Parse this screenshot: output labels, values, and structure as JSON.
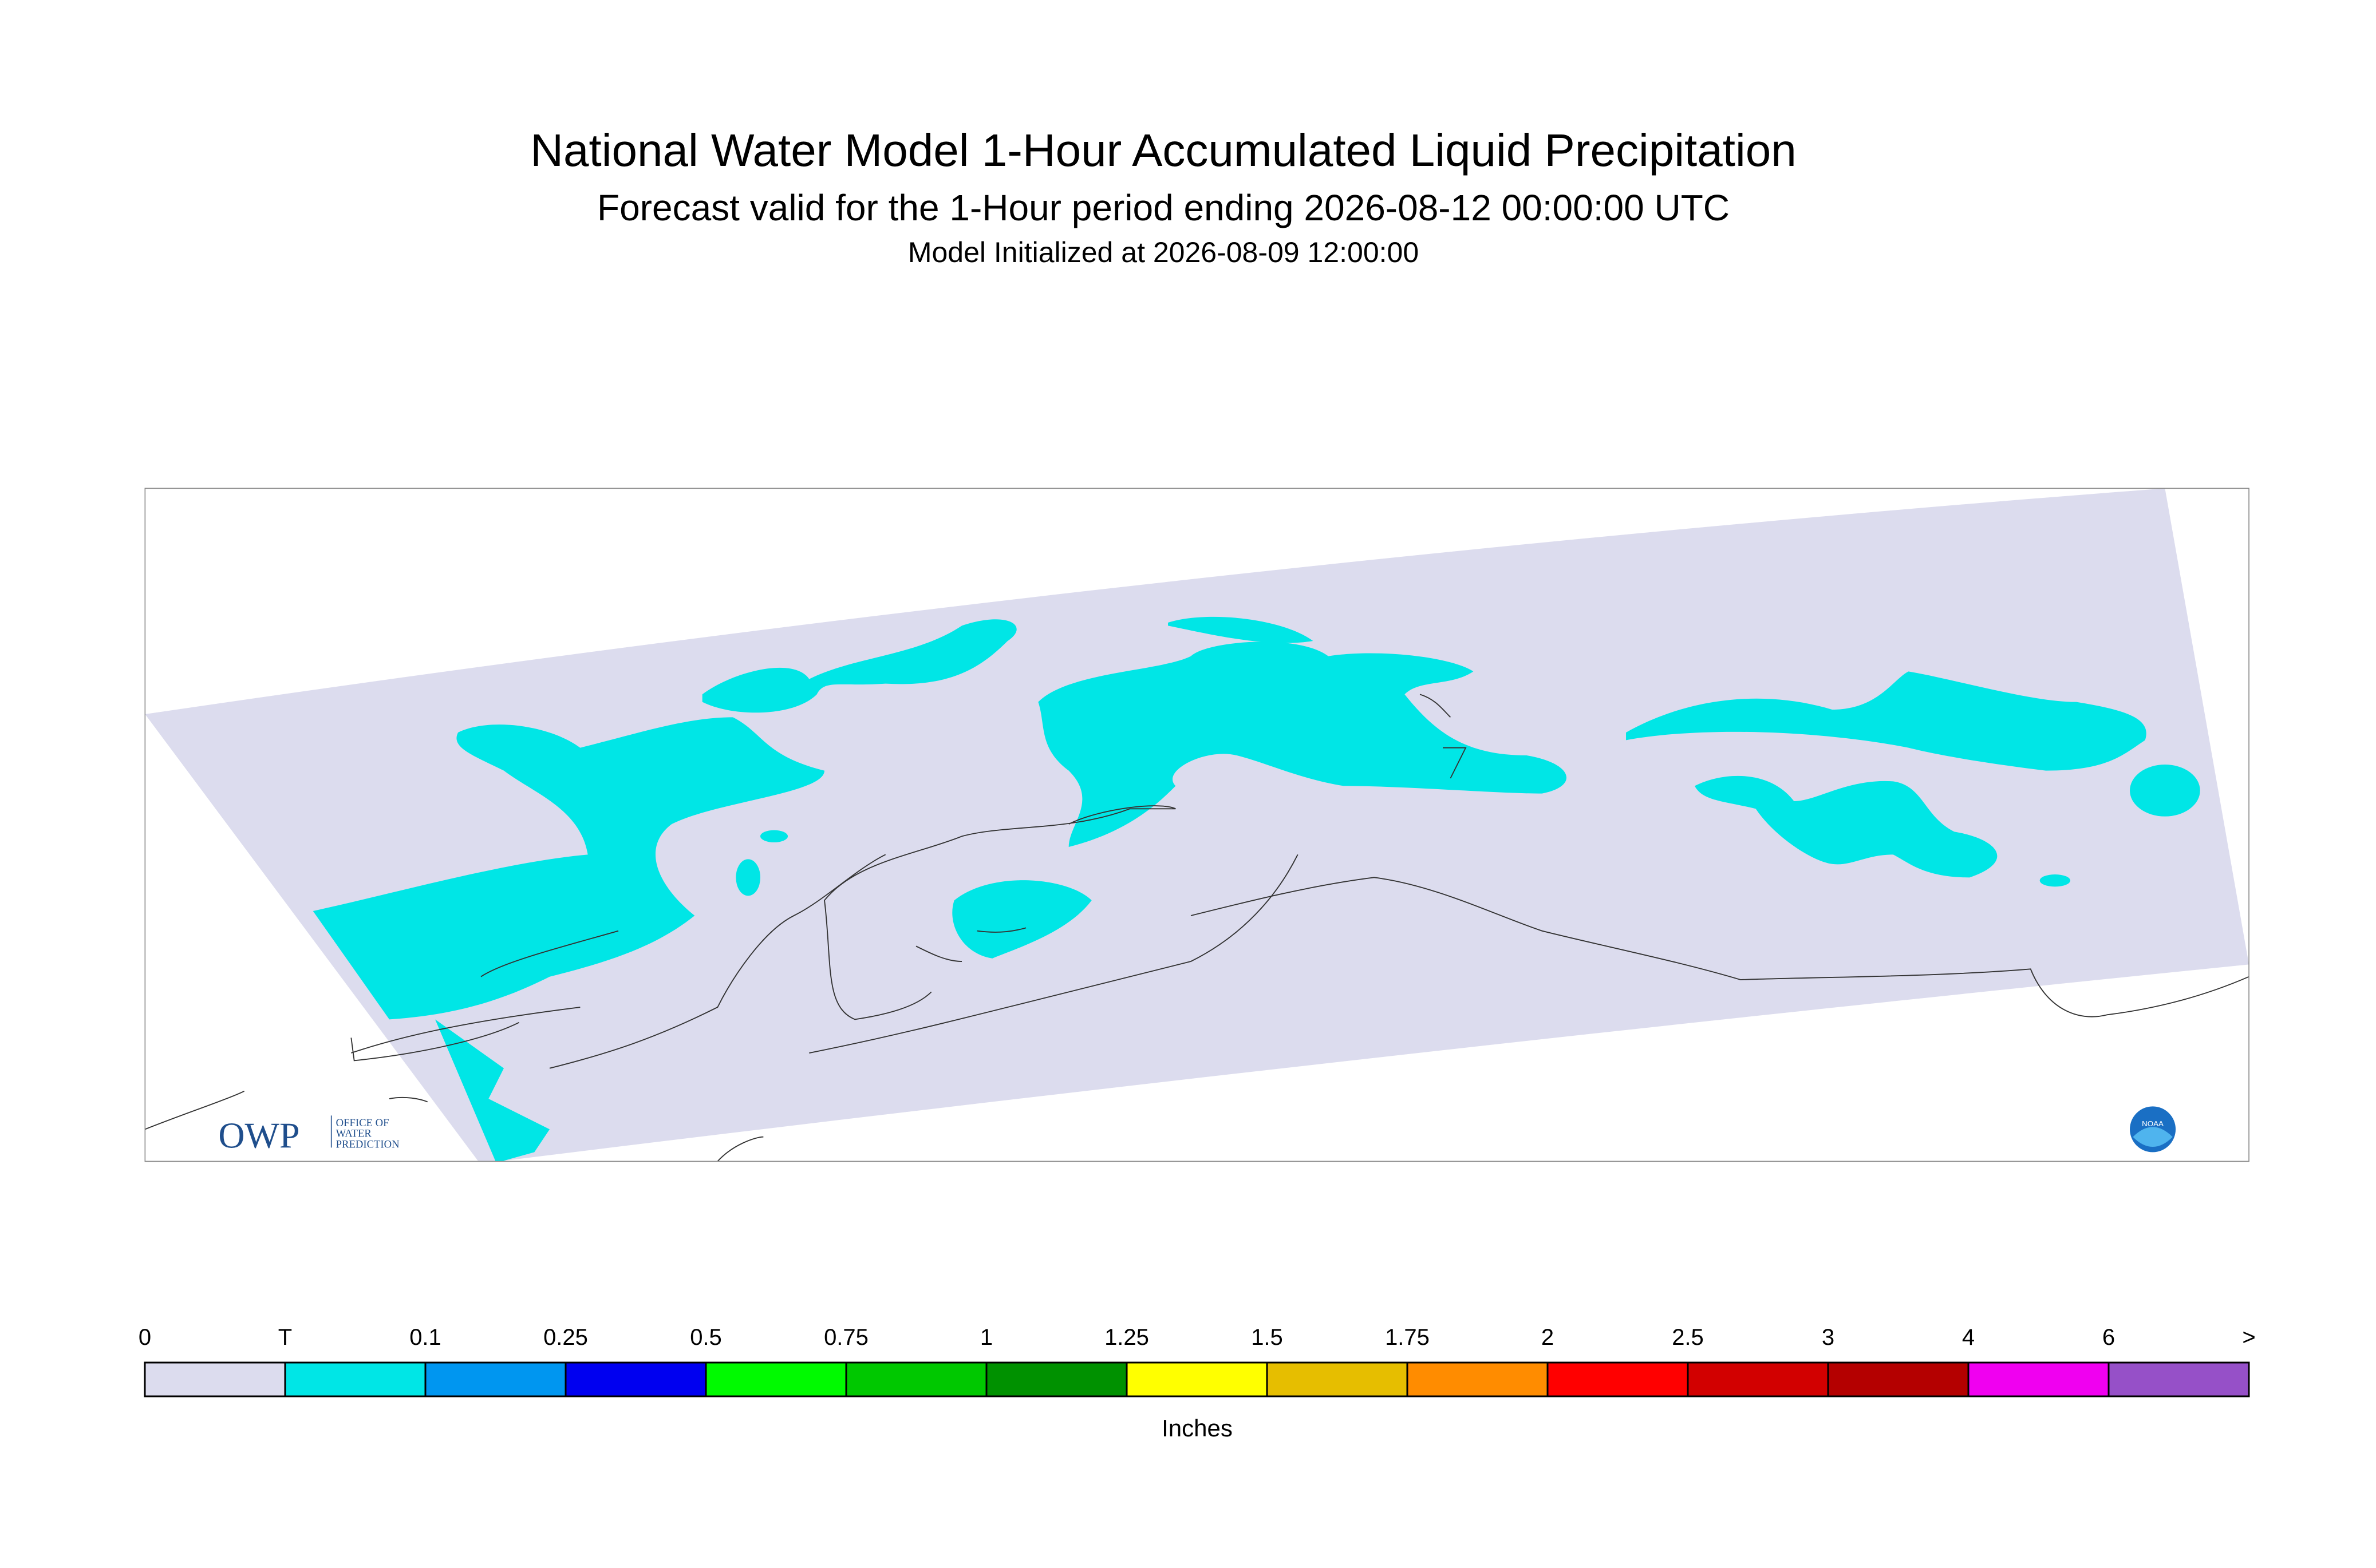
{
  "header": {
    "title": "National Water Model 1-Hour Accumulated Liquid Precipitation",
    "subtitle": "Forecast valid for the 1-Hour period ending 2026-08-12 00:00:00 UTC",
    "initialized": "Model Initialized at 2026-08-09 12:00:00"
  },
  "logos": {
    "owp": "OWP",
    "owp_lines": [
      "OFFICE OF",
      "WATER",
      "PREDICTION"
    ],
    "noaa": "NOAA"
  },
  "legend": {
    "labels": [
      "0",
      "T",
      "0.1",
      "0.25",
      "0.5",
      "0.75",
      "1",
      "1.25",
      "1.5",
      "1.75",
      "2",
      "2.5",
      "3",
      "4",
      "6",
      ">"
    ],
    "colors": [
      "#dcdcee",
      "#00e6e6",
      "#0096f0",
      "#0000f0",
      "#00fa00",
      "#00c800",
      "#009100",
      "#ffff00",
      "#e6be00",
      "#ff8c00",
      "#ff0000",
      "#d20000",
      "#b40000",
      "#f000f0",
      "#9650c8"
    ],
    "unit": "Inches"
  }
}
